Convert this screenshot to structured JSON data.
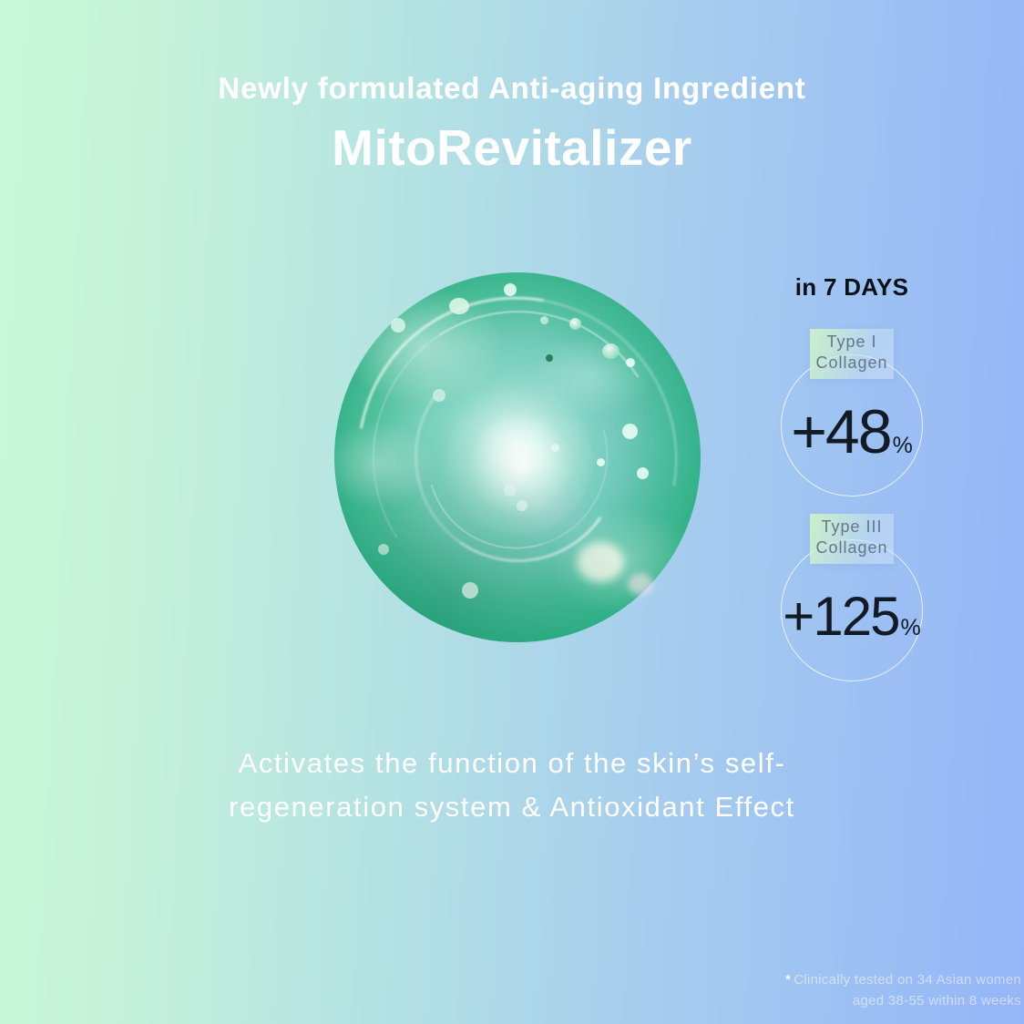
{
  "header": {
    "subtitle": "Newly formulated Anti-aging Ingredient",
    "title": "MitoRevitalizer"
  },
  "hero": {
    "image_name": "green-ingredient-bubble"
  },
  "stats": {
    "heading": "in 7 DAYS",
    "items": [
      {
        "label_line1": "Type I",
        "label_line2": "Collagen",
        "value": "+48",
        "unit": "%"
      },
      {
        "label_line1": "Type III",
        "label_line2": "Collagen",
        "value": "+125",
        "unit": "%"
      }
    ]
  },
  "description": {
    "line1": "Activates the function of the skin’s self-",
    "line2": "regeneration system & Antioxidant Effect"
  },
  "footnote": {
    "marker": "*",
    "line1": "Clinically tested on 34 Asian women",
    "line2": "aged 38-55 within 8 weeks"
  },
  "colors": {
    "background_left": "#c9fad9",
    "background_right": "#95b5f8",
    "bubble_green": "#2fb086",
    "bubble_green_light": "#53cb9e",
    "heading_text": "#ffffff",
    "stat_text": "#121a24",
    "badge_green": "#cdf2c8",
    "badge_blue": "#c6e0f4",
    "badge_label_text": "#606e80",
    "circle_outline": "#faFFfc"
  }
}
